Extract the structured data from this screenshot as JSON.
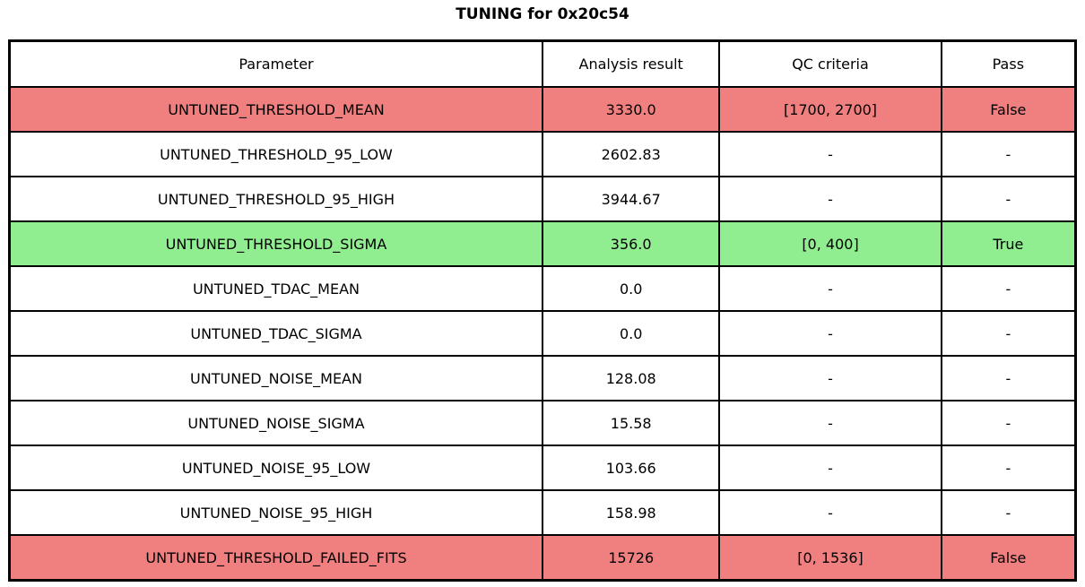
{
  "title": "TUNING for 0x20c54",
  "colors": {
    "fail": "#f08080",
    "pass": "#90ee90",
    "none": "#ffffff",
    "border": "#000000",
    "text": "#000000"
  },
  "chart_data": {
    "type": "table",
    "title": "TUNING for 0x20c54",
    "columns": [
      "Parameter",
      "Analysis result",
      "QC criteria",
      "Pass"
    ],
    "rows": [
      {
        "parameter": "UNTUNED_THRESHOLD_MEAN",
        "analysis_result": "3330.0",
        "qc_criteria": "[1700, 2700]",
        "pass": "False",
        "status": "fail"
      },
      {
        "parameter": "UNTUNED_THRESHOLD_95_LOW",
        "analysis_result": "2602.83",
        "qc_criteria": "-",
        "pass": "-",
        "status": "none"
      },
      {
        "parameter": "UNTUNED_THRESHOLD_95_HIGH",
        "analysis_result": "3944.67",
        "qc_criteria": "-",
        "pass": "-",
        "status": "none"
      },
      {
        "parameter": "UNTUNED_THRESHOLD_SIGMA",
        "analysis_result": "356.0",
        "qc_criteria": "[0, 400]",
        "pass": "True",
        "status": "pass"
      },
      {
        "parameter": "UNTUNED_TDAC_MEAN",
        "analysis_result": "0.0",
        "qc_criteria": "-",
        "pass": "-",
        "status": "none"
      },
      {
        "parameter": "UNTUNED_TDAC_SIGMA",
        "analysis_result": "0.0",
        "qc_criteria": "-",
        "pass": "-",
        "status": "none"
      },
      {
        "parameter": "UNTUNED_NOISE_MEAN",
        "analysis_result": "128.08",
        "qc_criteria": "-",
        "pass": "-",
        "status": "none"
      },
      {
        "parameter": "UNTUNED_NOISE_SIGMA",
        "analysis_result": "15.58",
        "qc_criteria": "-",
        "pass": "-",
        "status": "none"
      },
      {
        "parameter": "UNTUNED_NOISE_95_LOW",
        "analysis_result": "103.66",
        "qc_criteria": "-",
        "pass": "-",
        "status": "none"
      },
      {
        "parameter": "UNTUNED_NOISE_95_HIGH",
        "analysis_result": "158.98",
        "qc_criteria": "-",
        "pass": "-",
        "status": "none"
      },
      {
        "parameter": "UNTUNED_THRESHOLD_FAILED_FITS",
        "analysis_result": "15726",
        "qc_criteria": "[0, 1536]",
        "pass": "False",
        "status": "fail"
      }
    ]
  }
}
